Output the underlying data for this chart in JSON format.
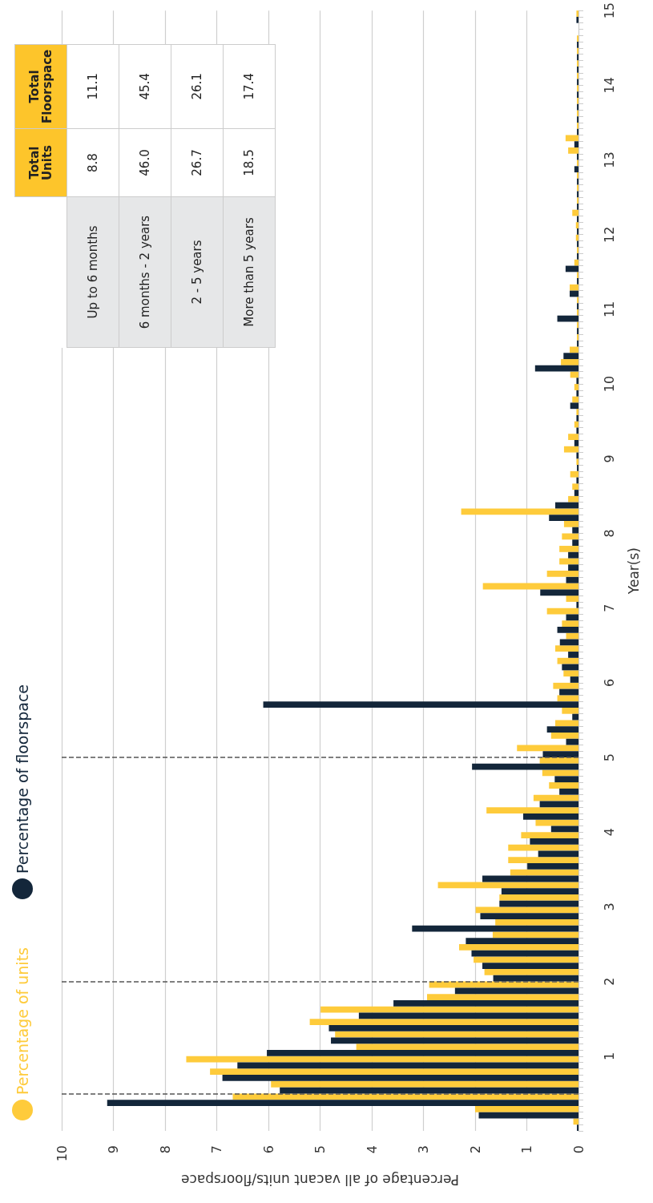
{
  "chart_data": {
    "type": "histogram",
    "xlabel": "Percentage of all vacant units/floorspace",
    "ylabel": "Year(s)",
    "orientation": "horizontal",
    "bins": [
      0,
      0.1667,
      0.3333,
      0.5,
      0.6667,
      0.8333,
      1,
      1.1667,
      1.3333,
      1.5,
      1.6667,
      1.8333,
      2,
      2.1667,
      2.3333,
      2.5,
      2.6667,
      2.8333,
      3,
      3.1667,
      3.3333,
      3.5,
      3.6667,
      3.8333,
      4,
      4.1667,
      4.3333,
      4.5,
      4.6667,
      4.8333,
      5,
      5.1667,
      5.3333,
      5.5,
      5.6667,
      5.8333,
      6,
      6.1667,
      6.3333,
      6.5,
      6.6667,
      6.8333,
      7,
      7.1667,
      7.3333,
      7.5,
      7.6667,
      7.8333,
      8,
      8.1667,
      8.3333,
      8.5,
      8.6667,
      8.8333,
      9,
      9.1667,
      9.3333,
      9.5,
      9.6667,
      9.8333,
      10,
      10.1667,
      10.3333,
      10.5,
      10.6667,
      10.8333,
      11,
      11.1667,
      11.3333,
      11.5,
      11.6667,
      11.8333,
      12,
      12.1667,
      12.3333,
      12.5,
      12.6667,
      12.8333,
      13,
      13.1667,
      13.3333,
      13.5,
      13.6667,
      13.8333,
      14,
      14.1667,
      14.3333,
      14.5,
      14.6667,
      14.8333,
      15
    ],
    "series": [
      {
        "name": "Percentage of units",
        "color": "#fecb3b",
        "values": [
          0.1,
          2.0,
          6.69,
          5.95,
          7.13,
          7.59,
          4.3,
          4.71,
          5.2,
          4.99,
          2.93,
          2.89,
          1.82,
          2.03,
          2.31,
          1.66,
          1.61,
          1.99,
          1.53,
          2.72,
          1.32,
          1.36,
          1.36,
          1.11,
          0.83,
          1.78,
          0.87,
          0.57,
          0.7,
          0.75,
          1.19,
          0.53,
          0.45,
          0.32,
          0.41,
          0.49,
          0.29,
          0.41,
          0.45,
          0.24,
          0.32,
          0.61,
          0.24,
          1.85,
          0.61,
          0.37,
          0.37,
          0.32,
          0.28,
          2.27,
          0.2,
          0.12,
          0.16,
          0.04,
          0.28,
          0.2,
          0.08,
          0.04,
          0.12,
          0.08,
          0.16,
          0.34,
          0.17,
          0.03,
          0.03,
          0.03,
          0.03,
          0.17,
          0.03,
          0.08,
          0.03,
          0.05,
          0.05,
          0.12,
          0.03,
          0.03,
          0.03,
          0.03,
          0.2,
          0.25,
          0.03,
          0.03,
          0.03,
          0.03,
          0.03,
          0.03,
          0.03,
          0.03,
          0,
          0.04
        ]
      },
      {
        "name": "Percentage of floorspace",
        "color": "#13263a",
        "values": [
          0.03,
          1.93,
          9.12,
          5.78,
          6.89,
          6.6,
          6.03,
          4.79,
          4.83,
          4.25,
          3.58,
          2.39,
          1.65,
          1.86,
          2.07,
          2.18,
          3.22,
          1.9,
          1.53,
          1.49,
          1.86,
          0.99,
          0.78,
          0.94,
          0.53,
          1.07,
          0.75,
          0.37,
          0.46,
          2.06,
          0.69,
          0.24,
          0.61,
          0.12,
          6.1,
          0.37,
          0.16,
          0.32,
          0.2,
          0.36,
          0.41,
          0.24,
          0.04,
          0.74,
          0.24,
          0.2,
          0.2,
          0.12,
          0.12,
          0.57,
          0.45,
          0.08,
          0.04,
          0.03,
          0.04,
          0.08,
          0.04,
          0.04,
          0.16,
          0.04,
          0.04,
          0.84,
          0.29,
          0.03,
          0.03,
          0.41,
          0.03,
          0.17,
          0.03,
          0.25,
          0.03,
          0.03,
          0.03,
          0.03,
          0.03,
          0.03,
          0.03,
          0.08,
          0.03,
          0.08,
          0.03,
          0.03,
          0.03,
          0.03,
          0.03,
          0.03,
          0.03,
          0.03,
          0,
          0.04
        ]
      }
    ],
    "xlim": [
      10,
      0
    ],
    "xticks": [
      0,
      1,
      2,
      3,
      4,
      5,
      6,
      7,
      8,
      9,
      10
    ],
    "ylim": [
      0,
      15
    ],
    "yticks": [
      {
        "value": 0,
        "label": null
      },
      1,
      2,
      3,
      4,
      5,
      6,
      7,
      8,
      9,
      10,
      11,
      12,
      13,
      14,
      15
    ],
    "ref_lines": [
      {
        "axis": "y",
        "value": 0.5,
        "color": "#555555",
        "line_style": "dashed"
      },
      {
        "axis": "y",
        "value": 2,
        "color": "#555555",
        "line_style": "dashed"
      },
      {
        "axis": "y",
        "value": 5,
        "color": "#555555",
        "line_style": "dashed"
      }
    ],
    "grid": "x",
    "legend": "left",
    "annotations": [
      "Total Units",
      "Total Floorspace",
      "Up to 6 months",
      "8.8",
      "11.1",
      "6 months - 2 years",
      "46.0",
      "45.4",
      "2 - 5 years",
      "26.7",
      "26.1",
      "More than 5 years",
      "18.5",
      "17.4"
    ]
  }
}
